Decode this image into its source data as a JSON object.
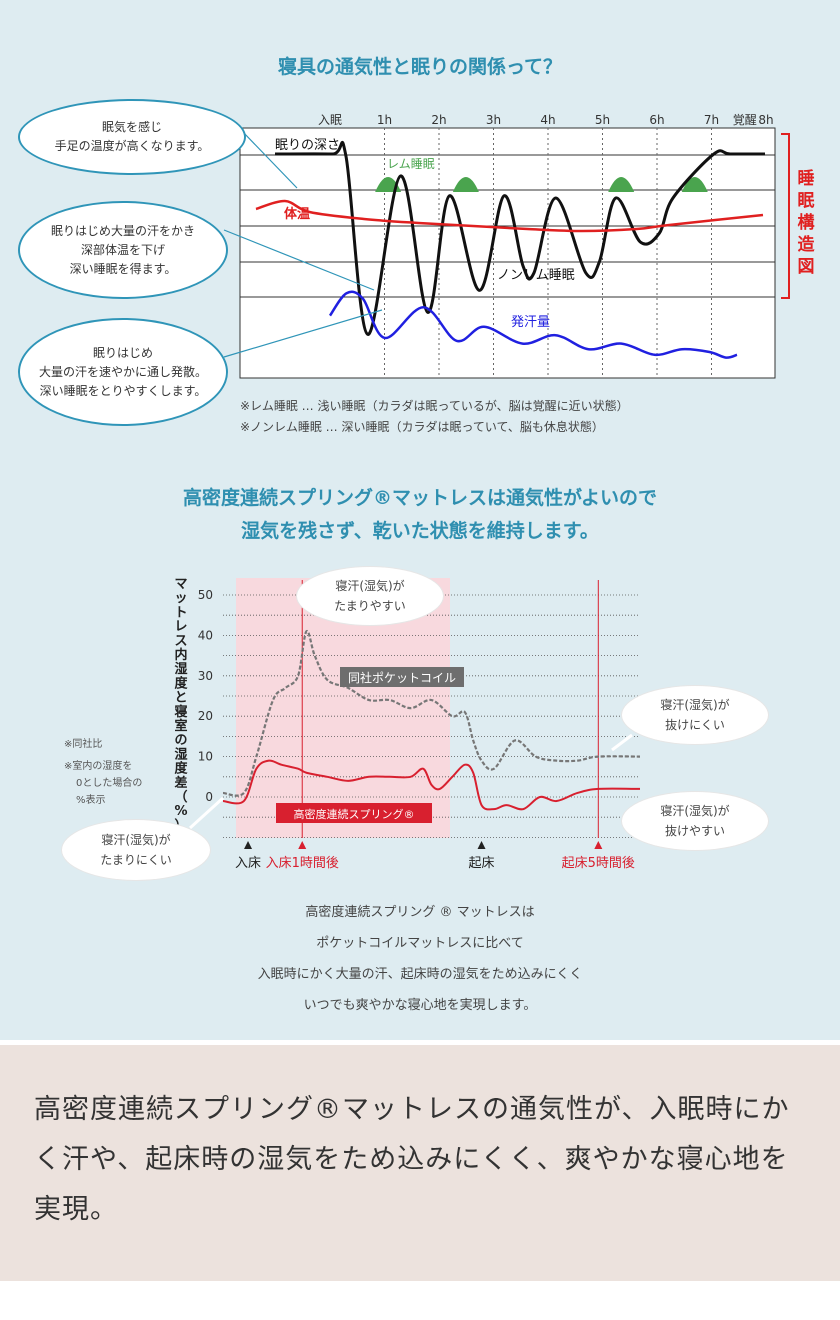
{
  "section1": {
    "title": "寝具の通気性と眠りの関係って？",
    "bubbles": [
      {
        "lines": [
          "眠気を感じ",
          "手足の温度が高くなります。"
        ]
      },
      {
        "lines": [
          "眠りはじめ大量の汗をかき",
          "深部体温を下げ",
          "深い睡眠を得ます。"
        ]
      },
      {
        "lines": [
          "眠りはじめ",
          "大量の汗を速やかに通し発散。",
          "深い睡眠をとりやすくします。"
        ]
      }
    ],
    "notes": [
      "※レム睡眠 … 浅い睡眠（カラダは眠っているが、脳は覚醒に近い状態）",
      "※ノンレム睡眠 … 深い睡眠（カラダは眠っていて、脳も休息状態）"
    ]
  },
  "chart_data": [
    {
      "type": "line",
      "title": "睡眠構造図",
      "x_ticks": [
        "入眠",
        "1h",
        "2h",
        "3h",
        "4h",
        "5h",
        "6h",
        "7h",
        "覚醒",
        "8h"
      ],
      "x_tick_hours": [
        0,
        1,
        2,
        3,
        4,
        5,
        6,
        7,
        7.5,
        8
      ],
      "bracket_label": "睡眠構造図",
      "labels": {
        "depth": "眠りの深さ",
        "rem": "レム睡眠",
        "temp": "体温",
        "nonrem": "ノンレム睡眠",
        "sweat": "発汗量"
      },
      "colors": {
        "depth": "#111111",
        "rem": "#4aa44e",
        "temp": "#e02020",
        "sweat": "#2020e0",
        "bracket": "#e02020"
      },
      "series": [
        {
          "name": "眠りの深さ",
          "x": [
            0,
            0.3,
            0.55,
            0.95,
            1.55,
            2.05,
            2.45,
            3.0,
            3.45,
            3.8,
            4.0,
            4.4,
            4.95,
            5.2,
            5.5,
            5.95,
            6.3,
            6.55,
            7.3,
            7.6,
            8
          ],
          "y": [
            0,
            0,
            0.05,
            4.1,
            0.5,
            3.6,
            0.95,
            3.1,
            0.95,
            2.55,
            2.7,
            1.0,
            2.7,
            2.45,
            1.0,
            2.0,
            1.8,
            1.0,
            0,
            0,
            0
          ]
        },
        {
          "name": "体温",
          "x": [
            0,
            0.55,
            1.0,
            2.0,
            3.0,
            4.0,
            5.0,
            6.0,
            7.0,
            7.6,
            8
          ],
          "y": [
            1.95,
            1.55,
            2.1,
            2.45,
            2.65,
            2.8,
            2.95,
            3.05,
            2.95,
            2.75,
            2.25
          ]
        },
        {
          "name": "発汗量",
          "x": [
            0,
            0.3,
            0.6,
            1.0,
            1.7,
            2.3,
            2.8,
            3.5,
            4.1,
            4.7,
            5.3,
            5.9,
            6.4,
            6.9,
            7.2,
            7.4
          ],
          "y": [
            0.85,
            0.45,
            0.55,
            1.25,
            0.7,
            1.3,
            1.05,
            1.35,
            1.2,
            1.45,
            1.35,
            1.55,
            1.45,
            1.5,
            1.6,
            1.55
          ]
        }
      ],
      "rem_peaks_hours": [
        1.25,
        2.75,
        5.6,
        6.95
      ]
    },
    {
      "type": "line",
      "title": "マットレス内湿度と寝室の湿度差（%）",
      "ylabel": "マットレス内湿度と寝室の湿度差（%）",
      "y_ticks": [
        50,
        40,
        30,
        20,
        10,
        0
      ],
      "ylim": [
        -10,
        50
      ],
      "series": [
        {
          "name": "同社ポケットコイル",
          "x": [
            0,
            0.05,
            0.08,
            0.12,
            0.15,
            0.18,
            0.2,
            0.22,
            0.25,
            0.3,
            0.35,
            0.4,
            0.45,
            0.5,
            0.55,
            0.58,
            0.6,
            0.62,
            0.65,
            0.7,
            0.75,
            0.8,
            0.85,
            0.9,
            1.0
          ],
          "y": [
            1,
            1,
            10,
            24,
            27,
            30,
            41,
            35,
            29,
            27,
            24,
            24,
            22,
            24,
            20,
            21,
            14,
            9,
            7,
            14,
            10,
            9,
            9,
            10,
            10
          ]
        },
        {
          "name": "高密度連続スプリング®",
          "x": [
            0,
            0.05,
            0.08,
            0.11,
            0.14,
            0.18,
            0.2,
            0.25,
            0.3,
            0.35,
            0.4,
            0.45,
            0.48,
            0.5,
            0.52,
            0.55,
            0.58,
            0.6,
            0.62,
            0.65,
            0.68,
            0.72,
            0.76,
            0.8,
            0.85,
            0.9,
            1.0
          ],
          "y": [
            -1,
            -1,
            7,
            9,
            8,
            7,
            6,
            5,
            4,
            5,
            5,
            5,
            7,
            3,
            2,
            5,
            8,
            6,
            -2,
            -3,
            -2,
            -3,
            0,
            -1,
            1,
            2,
            2
          ]
        }
      ],
      "events": [
        {
          "label": "入床",
          "x": 0.06,
          "color": "#222222"
        },
        {
          "label": "入床1時間後",
          "x": 0.19,
          "color": "#d8202f"
        },
        {
          "label": "起床",
          "x": 0.62,
          "color": "#222222"
        },
        {
          "label": "起床5時間後",
          "x": 0.9,
          "color": "#d8202f"
        }
      ],
      "colors": {
        "pocket": "#777777",
        "spring": "#d8202f",
        "shade": "#f8d9de"
      }
    }
  ],
  "section2": {
    "title_lines": [
      "高密度連続スプリング®マットレスは通気性がよいので",
      "湿気を残さず、乾いた状態を維持します。"
    ],
    "bubbles": [
      {
        "lines": [
          "寝汗(湿気)が",
          "たまりやすい"
        ]
      },
      {
        "lines": [
          "寝汗(湿気)が",
          "抜けにくい"
        ]
      },
      {
        "lines": [
          "寝汗(湿気)が",
          "抜けやすい"
        ]
      },
      {
        "lines": [
          "寝汗(湿気)が",
          "たまりにくい"
        ]
      }
    ],
    "side_notes": [
      "※同社比",
      "※室内の湿度を",
      "0とした場合の",
      "%表示"
    ],
    "legend_pocket": "同社ポケットコイル",
    "legend_spring": "高密度連続スプリング®",
    "description": [
      "高密度連続スプリング ® マットレスは",
      "ポケットコイルマットレスに比べて",
      "入眠時にかく大量の汗、起床時の湿気をため込みにくく",
      "いつでも爽やかな寝心地を実現します。"
    ]
  },
  "footer": {
    "text": "高密度連続スプリング®マットレスの通気性が、入眠時にかく汗や、起床時の湿気をため込みにくく、爽やかな寝心地を実現。"
  }
}
